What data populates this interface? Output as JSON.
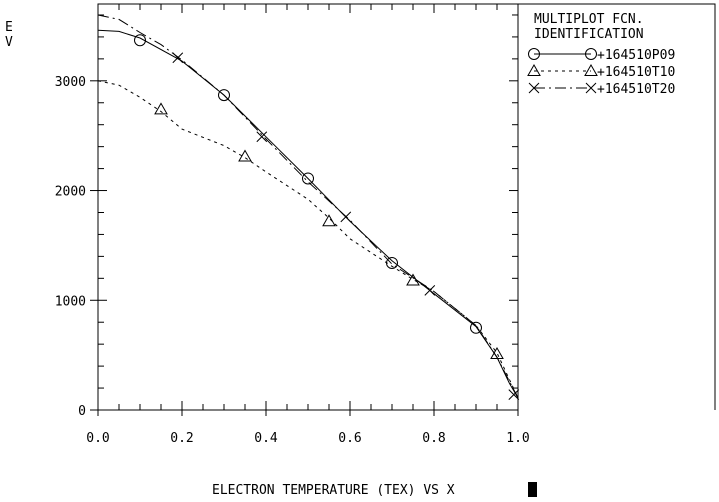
{
  "chart_data": {
    "type": "line",
    "title": "",
    "xlabel": "ELECTRON TEMPERATURE (TEX) VS X",
    "ylabel": "E\nV",
    "xlim": [
      0.0,
      1.0
    ],
    "ylim": [
      0,
      3700
    ],
    "x_ticks": [
      "0.0",
      "0.2",
      "0.4",
      "0.6",
      "0.8",
      "1.0"
    ],
    "y_ticks": [
      "0",
      "1000",
      "2000",
      "3000"
    ],
    "grid": false,
    "legend": {
      "title_lines": [
        "MULTIPLOT FCN.",
        "IDENTIFICATION"
      ],
      "placement": "right",
      "entries": [
        "+164510P09",
        "+164510T10",
        "+164510T20"
      ]
    },
    "series": [
      {
        "name": "+164510P09",
        "style": "solid",
        "marker": "circle",
        "curve": [
          [
            0.0,
            3460
          ],
          [
            0.05,
            3450
          ],
          [
            0.1,
            3390
          ],
          [
            0.2,
            3180
          ],
          [
            0.3,
            2870
          ],
          [
            0.4,
            2490
          ],
          [
            0.5,
            2110
          ],
          [
            0.6,
            1720
          ],
          [
            0.7,
            1360
          ],
          [
            0.8,
            1060
          ],
          [
            0.9,
            760
          ],
          [
            0.95,
            480
          ],
          [
            0.98,
            240
          ],
          [
            1.0,
            110
          ]
        ],
        "markers": [
          [
            0.1,
            3370
          ],
          [
            0.3,
            2870
          ],
          [
            0.5,
            2110
          ],
          [
            0.7,
            1340
          ],
          [
            0.9,
            750
          ]
        ]
      },
      {
        "name": "+164510T10",
        "style": "dotted",
        "marker": "triangle",
        "curve": [
          [
            0.0,
            3000
          ],
          [
            0.05,
            2960
          ],
          [
            0.1,
            2850
          ],
          [
            0.15,
            2720
          ],
          [
            0.2,
            2560
          ],
          [
            0.3,
            2410
          ],
          [
            0.35,
            2300
          ],
          [
            0.4,
            2170
          ],
          [
            0.5,
            1920
          ],
          [
            0.55,
            1750
          ],
          [
            0.6,
            1560
          ],
          [
            0.7,
            1310
          ],
          [
            0.75,
            1190
          ],
          [
            0.8,
            1080
          ],
          [
            0.9,
            770
          ],
          [
            0.95,
            520
          ],
          [
            1.0,
            110
          ]
        ],
        "markers": [
          [
            0.15,
            2740
          ],
          [
            0.35,
            2310
          ],
          [
            0.55,
            1720
          ],
          [
            0.75,
            1180
          ],
          [
            0.95,
            510
          ]
        ]
      },
      {
        "name": "+164510T20",
        "style": "dash-dot",
        "marker": "x",
        "curve": [
          [
            0.0,
            3600
          ],
          [
            0.05,
            3560
          ],
          [
            0.1,
            3440
          ],
          [
            0.15,
            3330
          ],
          [
            0.2,
            3190
          ],
          [
            0.3,
            2870
          ],
          [
            0.4,
            2470
          ],
          [
            0.5,
            2080
          ],
          [
            0.6,
            1730
          ],
          [
            0.7,
            1330
          ],
          [
            0.8,
            1080
          ],
          [
            0.9,
            770
          ],
          [
            0.95,
            480
          ],
          [
            1.0,
            110
          ]
        ],
        "markers": [
          [
            0.19,
            3210
          ],
          [
            0.39,
            2490
          ],
          [
            0.59,
            1760
          ],
          [
            0.79,
            1090
          ],
          [
            0.99,
            140
          ]
        ]
      }
    ]
  }
}
